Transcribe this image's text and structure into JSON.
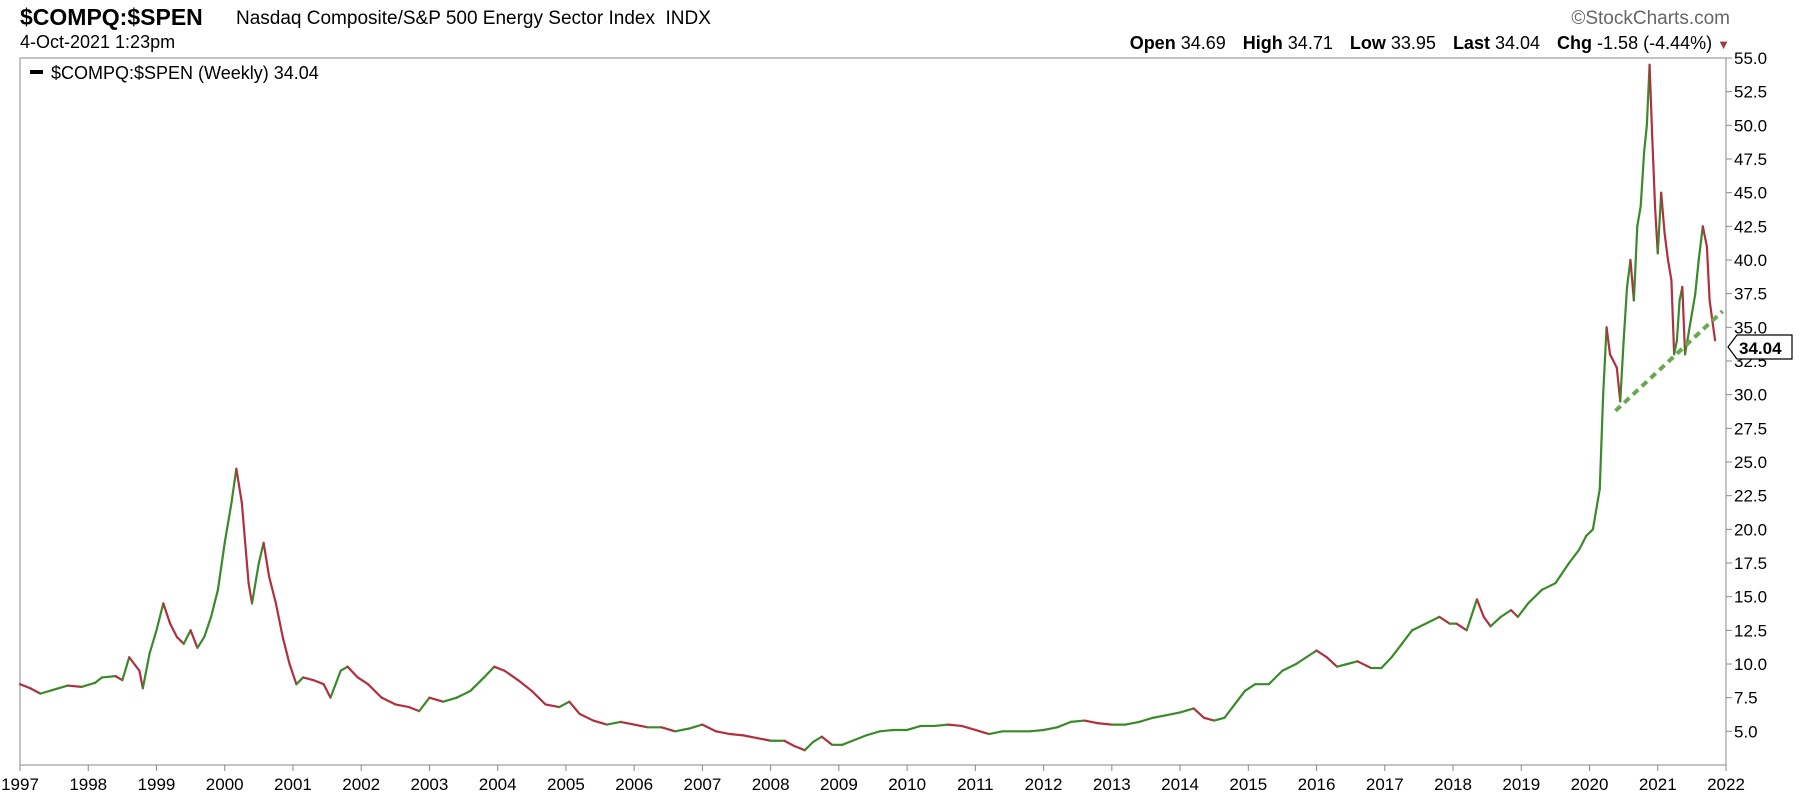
{
  "header": {
    "ticker": "$COMPQ:$SPEN",
    "description": "Nasdaq Composite/S&P 500 Energy Sector Index",
    "exchange": "INDX",
    "datetime": "4-Oct-2021 1:23pm",
    "brand": "©StockCharts.com",
    "quote": {
      "open_label": "Open",
      "open": "34.69",
      "high_label": "High",
      "high": "34.71",
      "low_label": "Low",
      "low": "33.95",
      "last_label": "Last",
      "last": "34.04",
      "chg_label": "Chg",
      "chg": "-1.58 (-4.44%)",
      "direction_icon": "down-triangle-icon"
    }
  },
  "legend": {
    "label": "$COMPQ:$SPEN (Weekly) 34.04"
  },
  "price_tag": "34.04",
  "colors": {
    "up": "#3a8a2a",
    "down": "#b03040",
    "trendline": "#6aa84f",
    "axis": "#888888"
  },
  "chart_data": {
    "type": "line",
    "series_name": "$COMPQ:$SPEN (Weekly)",
    "x_tick_labels": [
      "1997",
      "1998",
      "1999",
      "2000",
      "2001",
      "2002",
      "2003",
      "2004",
      "2005",
      "2006",
      "2007",
      "2008",
      "2009",
      "2010",
      "2011",
      "2012",
      "2013",
      "2014",
      "2015",
      "2016",
      "2017",
      "2018",
      "2019",
      "2020",
      "2021",
      "2022"
    ],
    "y_tick_labels": [
      "5.0",
      "7.5",
      "10.0",
      "12.5",
      "15.0",
      "17.5",
      "20.0",
      "22.5",
      "25.0",
      "27.5",
      "30.0",
      "32.5",
      "35.0",
      "37.5",
      "40.0",
      "42.5",
      "45.0",
      "47.5",
      "50.0",
      "52.5",
      "55.0"
    ],
    "xlim": [
      1997.0,
      2022.0
    ],
    "ylim": [
      2.5,
      55.0
    ],
    "y_scale": "linear",
    "grid": false,
    "legend_position": "top-left",
    "points": [
      [
        1997.0,
        8.5
      ],
      [
        1997.15,
        8.2
      ],
      [
        1997.3,
        7.8
      ],
      [
        1997.5,
        8.1
      ],
      [
        1997.7,
        8.4
      ],
      [
        1997.9,
        8.3
      ],
      [
        1998.1,
        8.6
      ],
      [
        1998.2,
        9.0
      ],
      [
        1998.4,
        9.1
      ],
      [
        1998.5,
        8.8
      ],
      [
        1998.6,
        10.5
      ],
      [
        1998.75,
        9.5
      ],
      [
        1998.8,
        8.2
      ],
      [
        1998.9,
        10.8
      ],
      [
        1999.0,
        12.5
      ],
      [
        1999.1,
        14.5
      ],
      [
        1999.2,
        13.0
      ],
      [
        1999.3,
        12.0
      ],
      [
        1999.4,
        11.5
      ],
      [
        1999.5,
        12.5
      ],
      [
        1999.6,
        11.2
      ],
      [
        1999.7,
        12.0
      ],
      [
        1999.8,
        13.5
      ],
      [
        1999.9,
        15.5
      ],
      [
        2000.0,
        19.0
      ],
      [
        2000.1,
        22.0
      ],
      [
        2000.17,
        24.5
      ],
      [
        2000.25,
        22.0
      ],
      [
        2000.3,
        19.0
      ],
      [
        2000.35,
        16.0
      ],
      [
        2000.4,
        14.5
      ],
      [
        2000.5,
        17.5
      ],
      [
        2000.57,
        19.0
      ],
      [
        2000.65,
        16.5
      ],
      [
        2000.75,
        14.5
      ],
      [
        2000.85,
        12.0
      ],
      [
        2000.95,
        10.0
      ],
      [
        2001.05,
        8.5
      ],
      [
        2001.15,
        9.0
      ],
      [
        2001.3,
        8.8
      ],
      [
        2001.45,
        8.5
      ],
      [
        2001.55,
        7.5
      ],
      [
        2001.7,
        9.5
      ],
      [
        2001.8,
        9.8
      ],
      [
        2001.95,
        9.0
      ],
      [
        2002.1,
        8.5
      ],
      [
        2002.3,
        7.5
      ],
      [
        2002.5,
        7.0
      ],
      [
        2002.7,
        6.8
      ],
      [
        2002.85,
        6.5
      ],
      [
        2003.0,
        7.5
      ],
      [
        2003.2,
        7.2
      ],
      [
        2003.4,
        7.5
      ],
      [
        2003.6,
        8.0
      ],
      [
        2003.8,
        9.0
      ],
      [
        2003.95,
        9.8
      ],
      [
        2004.1,
        9.5
      ],
      [
        2004.3,
        8.8
      ],
      [
        2004.5,
        8.0
      ],
      [
        2004.7,
        7.0
      ],
      [
        2004.9,
        6.8
      ],
      [
        2005.05,
        7.2
      ],
      [
        2005.2,
        6.3
      ],
      [
        2005.4,
        5.8
      ],
      [
        2005.6,
        5.5
      ],
      [
        2005.8,
        5.7
      ],
      [
        2006.0,
        5.5
      ],
      [
        2006.2,
        5.3
      ],
      [
        2006.4,
        5.3
      ],
      [
        2006.6,
        5.0
      ],
      [
        2006.8,
        5.2
      ],
      [
        2007.0,
        5.5
      ],
      [
        2007.2,
        5.0
      ],
      [
        2007.4,
        4.8
      ],
      [
        2007.6,
        4.7
      ],
      [
        2007.8,
        4.5
      ],
      [
        2008.0,
        4.3
      ],
      [
        2008.2,
        4.3
      ],
      [
        2008.35,
        3.9
      ],
      [
        2008.5,
        3.6
      ],
      [
        2008.62,
        4.2
      ],
      [
        2008.75,
        4.6
      ],
      [
        2008.9,
        4.0
      ],
      [
        2009.05,
        4.0
      ],
      [
        2009.2,
        4.3
      ],
      [
        2009.4,
        4.7
      ],
      [
        2009.6,
        5.0
      ],
      [
        2009.8,
        5.1
      ],
      [
        2010.0,
        5.1
      ],
      [
        2010.2,
        5.4
      ],
      [
        2010.4,
        5.4
      ],
      [
        2010.6,
        5.5
      ],
      [
        2010.8,
        5.4
      ],
      [
        2011.0,
        5.1
      ],
      [
        2011.2,
        4.8
      ],
      [
        2011.4,
        5.0
      ],
      [
        2011.6,
        5.0
      ],
      [
        2011.8,
        5.0
      ],
      [
        2012.0,
        5.1
      ],
      [
        2012.2,
        5.3
      ],
      [
        2012.4,
        5.7
      ],
      [
        2012.6,
        5.8
      ],
      [
        2012.8,
        5.6
      ],
      [
        2013.0,
        5.5
      ],
      [
        2013.2,
        5.5
      ],
      [
        2013.4,
        5.7
      ],
      [
        2013.6,
        6.0
      ],
      [
        2013.8,
        6.2
      ],
      [
        2014.0,
        6.4
      ],
      [
        2014.2,
        6.7
      ],
      [
        2014.35,
        6.0
      ],
      [
        2014.5,
        5.8
      ],
      [
        2014.65,
        6.0
      ],
      [
        2014.8,
        7.0
      ],
      [
        2014.95,
        8.0
      ],
      [
        2015.1,
        8.5
      ],
      [
        2015.3,
        8.5
      ],
      [
        2015.5,
        9.5
      ],
      [
        2015.7,
        10.0
      ],
      [
        2015.85,
        10.5
      ],
      [
        2016.0,
        11.0
      ],
      [
        2016.15,
        10.5
      ],
      [
        2016.3,
        9.8
      ],
      [
        2016.45,
        10.0
      ],
      [
        2016.6,
        10.2
      ],
      [
        2016.8,
        9.7
      ],
      [
        2016.95,
        9.7
      ],
      [
        2017.1,
        10.5
      ],
      [
        2017.25,
        11.5
      ],
      [
        2017.4,
        12.5
      ],
      [
        2017.6,
        13.0
      ],
      [
        2017.8,
        13.5
      ],
      [
        2017.95,
        13.0
      ],
      [
        2018.05,
        13.0
      ],
      [
        2018.2,
        12.5
      ],
      [
        2018.35,
        14.8
      ],
      [
        2018.45,
        13.5
      ],
      [
        2018.55,
        12.8
      ],
      [
        2018.7,
        13.5
      ],
      [
        2018.85,
        14.0
      ],
      [
        2018.95,
        13.5
      ],
      [
        2019.1,
        14.5
      ],
      [
        2019.3,
        15.5
      ],
      [
        2019.5,
        16.0
      ],
      [
        2019.7,
        17.5
      ],
      [
        2019.85,
        18.5
      ],
      [
        2019.95,
        19.5
      ],
      [
        2020.05,
        20.0
      ],
      [
        2020.15,
        23.0
      ],
      [
        2020.2,
        30.0
      ],
      [
        2020.25,
        35.0
      ],
      [
        2020.3,
        33.0
      ],
      [
        2020.4,
        32.0
      ],
      [
        2020.45,
        29.5
      ],
      [
        2020.5,
        34.0
      ],
      [
        2020.55,
        38.0
      ],
      [
        2020.6,
        40.0
      ],
      [
        2020.65,
        37.0
      ],
      [
        2020.7,
        42.5
      ],
      [
        2020.75,
        44.0
      ],
      [
        2020.8,
        48.0
      ],
      [
        2020.84,
        50.0
      ],
      [
        2020.88,
        54.5
      ],
      [
        2020.92,
        49.0
      ],
      [
        2020.96,
        44.0
      ],
      [
        2021.0,
        40.5
      ],
      [
        2021.05,
        45.0
      ],
      [
        2021.1,
        42.0
      ],
      [
        2021.15,
        40.0
      ],
      [
        2021.2,
        38.5
      ],
      [
        2021.24,
        33.0
      ],
      [
        2021.28,
        34.0
      ],
      [
        2021.32,
        37.0
      ],
      [
        2021.36,
        38.0
      ],
      [
        2021.4,
        33.0
      ],
      [
        2021.45,
        34.5
      ],
      [
        2021.5,
        36.0
      ],
      [
        2021.55,
        37.5
      ],
      [
        2021.6,
        40.0
      ],
      [
        2021.66,
        42.5
      ],
      [
        2021.72,
        41.0
      ],
      [
        2021.76,
        37.0
      ],
      [
        2021.8,
        35.5
      ],
      [
        2021.84,
        34.04
      ]
    ],
    "trendline": [
      [
        2020.38,
        28.8
      ],
      [
        2021.95,
        36.2
      ]
    ]
  }
}
